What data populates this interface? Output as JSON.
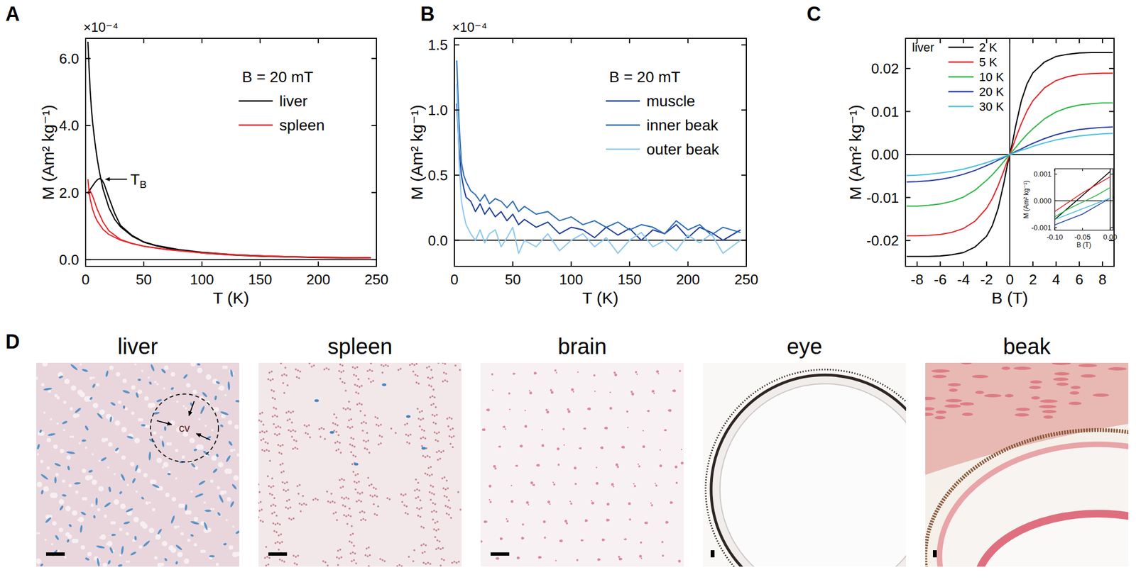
{
  "chart_data": [
    {
      "panel": "A",
      "type": "line",
      "y_multiplier": "×10⁻⁴",
      "x_label": "T  (K)",
      "y_label": "M  (Am² kg⁻¹)",
      "legend_title": "B = 20 mT",
      "legend": "upper right",
      "grid": false,
      "xlim": [
        0,
        250
      ],
      "xticks": [
        0,
        50,
        100,
        150,
        200,
        250
      ],
      "ylim": [
        -0.2,
        6.6
      ],
      "yticks": [
        {
          "value": 0,
          "label": "0.0"
        },
        {
          "value": 2,
          "label": "2.0"
        },
        {
          "value": 4,
          "label": "4.0"
        },
        {
          "value": 6,
          "label": "6.0"
        }
      ],
      "annotations": [
        {
          "text": "T",
          "subscript": "B",
          "x": 12,
          "y": 2.4
        }
      ],
      "series": [
        {
          "name": "liver",
          "color": "#000000",
          "x": [
            2,
            3,
            4,
            5,
            6,
            8,
            10,
            12,
            15,
            20,
            25,
            30,
            40,
            50,
            60,
            70,
            80,
            100,
            120,
            150,
            180,
            200,
            220,
            245
          ],
          "values": [
            6.5,
            5.7,
            5.0,
            4.5,
            4.1,
            3.5,
            3.0,
            2.6,
            2.1,
            1.55,
            1.2,
            0.98,
            0.7,
            0.52,
            0.42,
            0.34,
            0.28,
            0.2,
            0.15,
            0.1,
            0.08,
            0.06,
            0.05,
            0.05
          ]
        },
        {
          "name": "liver",
          "color": "#000000",
          "x": [
            2,
            4,
            6,
            8,
            10,
            12,
            14,
            16,
            20,
            25,
            30,
            40,
            50,
            60,
            80,
            100,
            130,
            160,
            200,
            245
          ],
          "values": [
            2.0,
            2.1,
            2.2,
            2.3,
            2.38,
            2.42,
            2.38,
            2.25,
            1.85,
            1.38,
            1.02,
            0.72,
            0.53,
            0.43,
            0.3,
            0.22,
            0.14,
            0.1,
            0.07,
            0.05
          ]
        },
        {
          "name": "spleen",
          "color": "#e8262a",
          "x": [
            2,
            3,
            4,
            6,
            8,
            10,
            15,
            20,
            30,
            40,
            50,
            70,
            100,
            130,
            160,
            200,
            245
          ],
          "values": [
            2.4,
            2.0,
            1.8,
            1.5,
            1.3,
            1.15,
            0.9,
            0.75,
            0.58,
            0.48,
            0.4,
            0.3,
            0.2,
            0.14,
            0.1,
            0.07,
            0.05
          ]
        },
        {
          "name": "spleen",
          "color": "#e8262a",
          "x": [
            2,
            4,
            6,
            8,
            10,
            15,
            20,
            30,
            40,
            50,
            70,
            100,
            130,
            160,
            200,
            245
          ],
          "values": [
            1.95,
            2.05,
            1.9,
            1.7,
            1.5,
            1.12,
            0.86,
            0.6,
            0.48,
            0.4,
            0.3,
            0.2,
            0.14,
            0.1,
            0.07,
            0.05
          ]
        }
      ]
    },
    {
      "panel": "B",
      "type": "line",
      "y_multiplier": "×10⁻⁴",
      "x_label": "T  (K)",
      "y_label": "M  (Am² kg⁻¹)",
      "legend_title": "B = 20 mT",
      "legend": "upper right",
      "grid": false,
      "xlim": [
        0,
        250
      ],
      "xticks": [
        0,
        50,
        100,
        150,
        200,
        250
      ],
      "ylim": [
        -0.2,
        1.55
      ],
      "yticks": [
        {
          "value": 0,
          "label": "0.0"
        },
        0.5,
        {
          "value": 1,
          "label": "1.0"
        },
        1.5
      ],
      "series": [
        {
          "name": "muscle",
          "color": "#1f3f99",
          "x": [
            2,
            4,
            6,
            8,
            10,
            14,
            18,
            22,
            26,
            30,
            35,
            40,
            45,
            50,
            55,
            60,
            70,
            80,
            90,
            100,
            110,
            120,
            130,
            140,
            150,
            160,
            170,
            180,
            190,
            200,
            210,
            220,
            230,
            245
          ],
          "values": [
            1.05,
            0.7,
            0.5,
            0.4,
            0.33,
            0.3,
            0.22,
            0.28,
            0.2,
            0.25,
            0.18,
            0.22,
            0.15,
            0.2,
            0.12,
            0.16,
            0.1,
            0.14,
            0.05,
            0.1,
            0.08,
            0.02,
            0.1,
            0.04,
            0.09,
            0.0,
            0.08,
            0.05,
            0.12,
            0.02,
            0.1,
            0.06,
            0.0,
            0.08
          ]
        },
        {
          "name": "inner beak",
          "color": "#2e6fb5",
          "x": [
            2,
            4,
            6,
            8,
            10,
            14,
            18,
            22,
            26,
            30,
            35,
            40,
            45,
            50,
            55,
            60,
            70,
            80,
            90,
            100,
            110,
            120,
            130,
            140,
            150,
            160,
            170,
            180,
            190,
            200,
            210,
            220,
            230,
            245
          ],
          "values": [
            1.38,
            0.9,
            0.6,
            0.5,
            0.45,
            0.38,
            0.35,
            0.3,
            0.35,
            0.28,
            0.32,
            0.3,
            0.25,
            0.3,
            0.22,
            0.26,
            0.2,
            0.22,
            0.15,
            0.18,
            0.12,
            0.15,
            0.1,
            0.14,
            0.08,
            0.12,
            0.1,
            0.05,
            0.15,
            0.08,
            0.12,
            0.04,
            0.1,
            0.06
          ]
        },
        {
          "name": "outer beak",
          "color": "#8ec8ee",
          "x": [
            2,
            4,
            6,
            8,
            10,
            14,
            18,
            22,
            26,
            30,
            35,
            40,
            45,
            50,
            55,
            60,
            70,
            80,
            90,
            100,
            110,
            120,
            130,
            140,
            150,
            160,
            170,
            180,
            190,
            200,
            210,
            220,
            230,
            245
          ],
          "values": [
            1.2,
            0.6,
            0.3,
            0.2,
            0.12,
            0.05,
            0.0,
            0.08,
            -0.02,
            0.05,
            0.08,
            -0.05,
            0.02,
            0.1,
            -0.1,
            0.0,
            -0.05,
            0.05,
            -0.08,
            0.0,
            0.05,
            -0.05,
            0.02,
            -0.1,
            0.0,
            0.06,
            -0.05,
            0.0,
            -0.08,
            0.04,
            -0.02,
            0.05,
            -0.1,
            0.0
          ]
        }
      ]
    },
    {
      "panel": "C",
      "type": "line",
      "x_label": "B  (T)",
      "y_label": "M  (Am² kg⁻¹)",
      "legend_title": "liver",
      "legend": "upper left",
      "grid": false,
      "xlim": [
        -9,
        9
      ],
      "xticks": [
        -8,
        -6,
        -4,
        -2,
        0,
        2,
        4,
        6,
        8
      ],
      "ylim": [
        -0.026,
        0.027
      ],
      "yticks": [
        -0.02,
        -0.01,
        {
          "value": 0,
          "label": "0.00"
        },
        0.01,
        0.02
      ],
      "series": [
        {
          "name": "2 K",
          "color": "#000000",
          "x": [
            -8.9,
            -8,
            -7,
            -6,
            -5,
            -4,
            -3,
            -2,
            -1.5,
            -1,
            -0.5,
            -0.25,
            0,
            0.25,
            0.5,
            1,
            1.5,
            2,
            3,
            4,
            5,
            6,
            7,
            8,
            8.9
          ],
          "values": [
            -0.0237,
            -0.0237,
            -0.0237,
            -0.0236,
            -0.0233,
            -0.0228,
            -0.0215,
            -0.019,
            -0.0165,
            -0.0125,
            -0.0065,
            -0.003,
            0.0,
            0.003,
            0.0065,
            0.0125,
            0.0165,
            0.019,
            0.0215,
            0.0228,
            0.0233,
            0.0236,
            0.0237,
            0.0237,
            0.0237
          ]
        },
        {
          "name": "5 K",
          "color": "#e8262a",
          "x": [
            -8.9,
            -8,
            -7,
            -6,
            -5,
            -4,
            -3,
            -2,
            -1.5,
            -1,
            -0.5,
            -0.25,
            0,
            0.25,
            0.5,
            1,
            1.5,
            2,
            3,
            4,
            5,
            6,
            7,
            8,
            8.9
          ],
          "values": [
            -0.0189,
            -0.0189,
            -0.0188,
            -0.0186,
            -0.0181,
            -0.0172,
            -0.0155,
            -0.0125,
            -0.0102,
            -0.0072,
            -0.0037,
            -0.0018,
            0.0,
            0.0018,
            0.0037,
            0.0072,
            0.0102,
            0.0125,
            0.0155,
            0.0172,
            0.0181,
            0.0186,
            0.0188,
            0.0189,
            0.0189
          ]
        },
        {
          "name": "10 K",
          "color": "#33b84a",
          "x": [
            -8.9,
            -8,
            -7,
            -6,
            -5,
            -4,
            -3,
            -2,
            -1.5,
            -1,
            -0.5,
            -0.25,
            0,
            0.25,
            0.5,
            1,
            1.5,
            2,
            3,
            4,
            5,
            6,
            7,
            8,
            8.9
          ],
          "values": [
            -0.012,
            -0.012,
            -0.0118,
            -0.0115,
            -0.0109,
            -0.0099,
            -0.0083,
            -0.006,
            -0.0047,
            -0.0032,
            -0.0016,
            -0.0008,
            0.0,
            0.0008,
            0.0016,
            0.0032,
            0.0047,
            0.006,
            0.0083,
            0.0099,
            0.0109,
            0.0115,
            0.0118,
            0.012,
            0.012
          ]
        },
        {
          "name": "20 K",
          "color": "#2a3f9f",
          "x": [
            -8.9,
            -8,
            -7,
            -6,
            -5,
            -4,
            -3,
            -2,
            -1.5,
            -1,
            -0.5,
            -0.25,
            0,
            0.25,
            0.5,
            1,
            1.5,
            2,
            3,
            4,
            5,
            6,
            7,
            8,
            8.9
          ],
          "values": [
            -0.0064,
            -0.0063,
            -0.0061,
            -0.0058,
            -0.0053,
            -0.0046,
            -0.0037,
            -0.0026,
            -0.002,
            -0.0013,
            -0.0007,
            -0.0003,
            0.0,
            0.0003,
            0.0007,
            0.0013,
            0.002,
            0.0026,
            0.0037,
            0.0046,
            0.0053,
            0.0058,
            0.0061,
            0.0063,
            0.0064
          ]
        },
        {
          "name": "30 K",
          "color": "#49c2d9",
          "x": [
            -8.9,
            -8,
            -7,
            -6,
            -5,
            -4,
            -3,
            -2,
            -1.5,
            -1,
            -0.5,
            -0.25,
            0,
            0.25,
            0.5,
            1,
            1.5,
            2,
            3,
            4,
            5,
            6,
            7,
            8,
            8.9
          ],
          "values": [
            -0.0049,
            -0.0048,
            -0.0046,
            -0.0043,
            -0.0039,
            -0.0034,
            -0.0027,
            -0.0019,
            -0.0014,
            -0.001,
            -0.0005,
            -0.0002,
            0.0,
            0.0002,
            0.0005,
            0.001,
            0.0014,
            0.0019,
            0.0027,
            0.0034,
            0.0039,
            0.0043,
            0.0046,
            0.0048,
            0.0049
          ]
        }
      ],
      "inset": {
        "type": "line",
        "x_label": "B  (T)",
        "y_label": "M  (Am² kg⁻¹)",
        "xlim": [
          -0.1,
          0.005
        ],
        "xticks": [
          {
            "value": -0.1,
            "label": "-0.10"
          },
          -0.05,
          {
            "value": 0,
            "label": "0.00"
          }
        ],
        "ylim": [
          -0.0011,
          0.0012
        ],
        "yticks": [
          -0.001,
          {
            "value": 0,
            "label": "0.000"
          },
          0.001
        ],
        "series": [
          {
            "color": "#000000",
            "x": [
              -0.1,
              -0.075,
              -0.05,
              -0.025,
              0
            ],
            "values": [
              -0.0007,
              -0.00025,
              0.0002,
              0.00065,
              0.0011
            ]
          },
          {
            "color": "#e8262a",
            "x": [
              -0.1,
              -0.075,
              -0.05,
              -0.025,
              0
            ],
            "values": [
              -0.0004,
              -5e-05,
              0.0003,
              0.0006,
              0.0009
            ]
          },
          {
            "color": "#33b84a",
            "x": [
              -0.1,
              -0.075,
              -0.05,
              -0.025,
              0
            ],
            "values": [
              -0.0006,
              -0.0003,
              -5e-05,
              0.0002,
              0.0005
            ]
          },
          {
            "color": "#2a3f9f",
            "x": [
              -0.1,
              -0.075,
              -0.05,
              -0.025,
              0
            ],
            "values": [
              -0.0009,
              -0.0007,
              -0.0005,
              -0.0002,
              0.0001
            ]
          },
          {
            "color": "#49c2d9",
            "x": [
              -0.1,
              -0.075,
              -0.05,
              -0.025,
              0
            ],
            "values": [
              -0.0007,
              -0.0005,
              -0.0003,
              -0.0001,
              0.0001
            ]
          }
        ]
      }
    }
  ],
  "figure_d": {
    "panel": "D",
    "images": [
      {
        "title": "liver",
        "annotation": "cv"
      },
      {
        "title": "spleen"
      },
      {
        "title": "brain"
      },
      {
        "title": "eye"
      },
      {
        "title": "beak"
      }
    ]
  }
}
